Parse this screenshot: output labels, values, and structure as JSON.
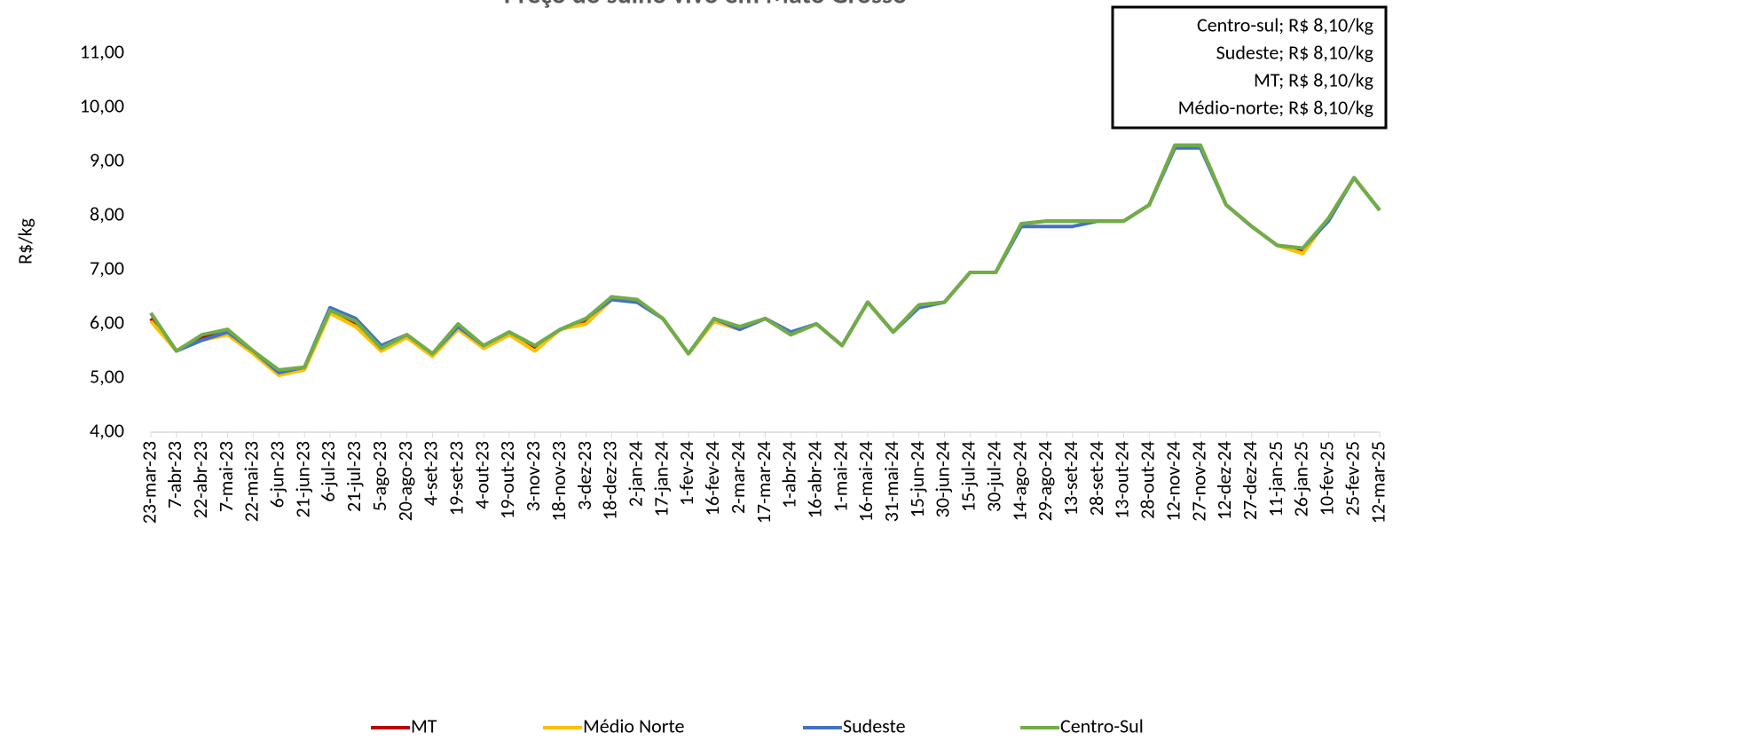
{
  "chart_data": {
    "type": "line",
    "title": "Preço do suíno vivo em Mato Grosso",
    "y_label": "R$/kg",
    "annotations": [
      "Centro-sul; R$ 8,10/kg",
      "Sudeste; R$ 8,10/kg",
      "MT; R$ 8,10/kg",
      "Médio-norte; R$ 8,10/kg"
    ],
    "categories": [
      "23-mar-23",
      "7-abr-23",
      "22-abr-23",
      "7-mai-23",
      "22-mai-23",
      "6-jun-23",
      "21-jun-23",
      "6-jul-23",
      "21-jul-23",
      "5-ago-23",
      "20-ago-23",
      "4-set-23",
      "19-set-23",
      "4-out-23",
      "19-out-23",
      "3-nov-23",
      "18-nov-23",
      "3-dez-23",
      "18-dez-23",
      "2-jan-24",
      "17-jan-24",
      "1-fev-24",
      "16-fev-24",
      "2-mar-24",
      "17-mar-24",
      "1-abr-24",
      "16-abr-24",
      "1-mai-24",
      "16-mai-24",
      "31-mai-24",
      "15-jun-24",
      "30-jun-24",
      "15-jul-24",
      "30-jul-24",
      "14-ago-24",
      "29-ago-24",
      "13-set-24",
      "28-set-24",
      "13-out-24",
      "28-out-24",
      "12-nov-24",
      "27-nov-24",
      "12-dez-24",
      "27-dez-24",
      "11-jan-25",
      "26-jan-25",
      "10-fev-25",
      "25-fev-25",
      "12-mar-25"
    ],
    "series": [
      {
        "name": "MT",
        "color": "#c00000",
        "values": [
          6.1,
          5.5,
          5.75,
          5.85,
          5.5,
          5.1,
          5.2,
          6.2,
          6.0,
          5.5,
          5.8,
          5.45,
          5.95,
          5.55,
          5.8,
          5.55,
          5.9,
          6.05,
          6.5,
          6.4,
          6.1,
          5.45,
          6.05,
          5.9,
          6.1,
          5.8,
          6.0,
          5.6,
          6.4,
          5.85,
          6.35,
          6.4,
          6.95,
          6.95,
          7.85,
          7.9,
          7.9,
          7.9,
          7.9,
          8.2,
          9.3,
          9.3,
          8.2,
          7.8,
          7.45,
          7.35,
          7.95,
          8.7,
          8.1
        ]
      },
      {
        "name": "Médio Norte",
        "color": "#ffc000",
        "values": [
          6.05,
          5.5,
          5.7,
          5.8,
          5.45,
          5.05,
          5.15,
          6.2,
          5.95,
          5.5,
          5.75,
          5.4,
          5.9,
          5.55,
          5.8,
          5.5,
          5.9,
          6.0,
          6.45,
          6.4,
          6.1,
          5.45,
          6.05,
          5.9,
          6.1,
          5.8,
          6.0,
          5.6,
          6.4,
          5.85,
          6.35,
          6.4,
          6.95,
          6.95,
          7.85,
          7.9,
          7.9,
          7.9,
          7.9,
          8.2,
          9.3,
          9.3,
          8.2,
          7.8,
          7.45,
          7.3,
          7.95,
          8.7,
          8.1
        ]
      },
      {
        "name": "Sudeste",
        "color": "#4472c4",
        "values": [
          6.2,
          5.5,
          5.7,
          5.85,
          5.5,
          5.1,
          5.2,
          6.3,
          6.1,
          5.6,
          5.8,
          5.45,
          5.95,
          5.6,
          5.85,
          5.6,
          5.9,
          6.1,
          6.45,
          6.4,
          6.1,
          5.45,
          6.1,
          5.9,
          6.1,
          5.85,
          6.0,
          5.6,
          6.4,
          5.85,
          6.3,
          6.4,
          6.95,
          6.95,
          7.8,
          7.8,
          7.8,
          7.9,
          7.9,
          8.2,
          9.25,
          9.25,
          8.2,
          7.8,
          7.45,
          7.4,
          7.9,
          8.7,
          8.1
        ]
      },
      {
        "name": "Centro-Sul",
        "color": "#70ad47",
        "values": [
          6.2,
          5.5,
          5.8,
          5.9,
          5.5,
          5.15,
          5.2,
          6.25,
          6.05,
          5.55,
          5.8,
          5.45,
          6.0,
          5.6,
          5.85,
          5.6,
          5.9,
          6.1,
          6.5,
          6.45,
          6.1,
          5.45,
          6.1,
          5.95,
          6.1,
          5.8,
          6.0,
          5.6,
          6.4,
          5.85,
          6.35,
          6.4,
          6.95,
          6.95,
          7.85,
          7.9,
          7.9,
          7.9,
          7.9,
          8.2,
          9.3,
          9.3,
          8.2,
          7.8,
          7.45,
          7.4,
          7.95,
          8.7,
          8.1
        ]
      }
    ],
    "ylim": [
      4,
      11
    ],
    "yticks": [
      {
        "value": 4,
        "label": "4,00"
      },
      {
        "value": 5,
        "label": "5,00"
      },
      {
        "value": 6,
        "label": "6,00"
      },
      {
        "value": 7,
        "label": "7,00"
      },
      {
        "value": 8,
        "label": "8,00"
      },
      {
        "value": 9,
        "label": "9,00"
      },
      {
        "value": 10,
        "label": "10,00"
      },
      {
        "value": 11,
        "label": "11,00"
      }
    ],
    "legend": "bottom"
  }
}
